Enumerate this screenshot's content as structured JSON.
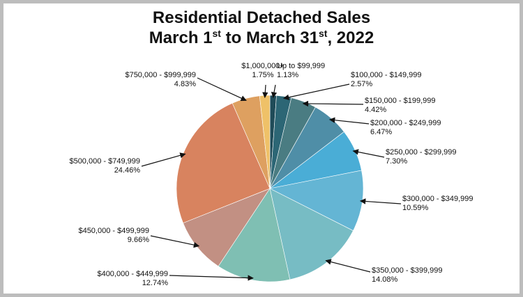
{
  "chart_data": {
    "type": "pie",
    "title_line1": "Residential Detached Sales",
    "title_line2": {
      "pre": "March 1",
      "sup1": "st",
      "mid": " to March 31",
      "sup2": "st",
      "post": ", 2022"
    },
    "slices": [
      {
        "label": "Up to $99,999",
        "pct_text": "1.13%",
        "value": 1.13,
        "color": "#1f4b58"
      },
      {
        "label": "$100,000 - $149,999",
        "pct_text": "2.57%",
        "value": 2.57,
        "color": "#2c6675"
      },
      {
        "label": "$150,000 - $199,999",
        "pct_text": "4.42%",
        "value": 4.42,
        "color": "#4a7c82"
      },
      {
        "label": "$200,000 - $249,999",
        "pct_text": "6.47%",
        "value": 6.47,
        "color": "#4f8ea7"
      },
      {
        "label": "$250,000 - $299,999",
        "pct_text": "7.30%",
        "value": 7.3,
        "color": "#4aadd6"
      },
      {
        "label": "$300,000 - $349,999",
        "pct_text": "10.59%",
        "value": 10.59,
        "color": "#64b5d4"
      },
      {
        "label": "$350,000 - $399,999",
        "pct_text": "14.08%",
        "value": 14.08,
        "color": "#77bcc4"
      },
      {
        "label": "$400,000 - $449,999",
        "pct_text": "12.74%",
        "value": 12.74,
        "color": "#7fbfb3"
      },
      {
        "label": "$450,000 - $499,999",
        "pct_text": "9.66%",
        "value": 9.66,
        "color": "#c29083"
      },
      {
        "label": "$500,000 - $749,999",
        "pct_text": "24.46%",
        "value": 24.46,
        "color": "#d8835f"
      },
      {
        "label": "$750,000 - $999,999",
        "pct_text": "4.83%",
        "value": 4.83,
        "color": "#dea060"
      },
      {
        "label": "$1,000,000+",
        "pct_text": "1.75%",
        "value": 1.75,
        "color": "#efc168"
      }
    ]
  }
}
